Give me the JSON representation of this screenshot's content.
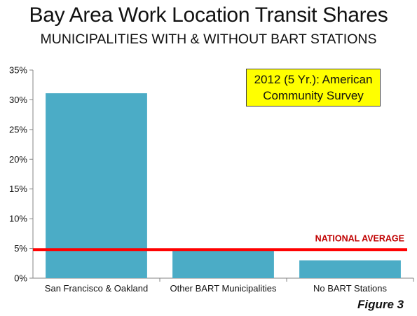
{
  "title": "Bay Area Work Location Transit Shares",
  "subtitle": "MUNICIPALITIES WITH & WITHOUT BART STATIONS",
  "annotation": {
    "line1": "2012 (5 Yr.): American",
    "line2": "Community Survey"
  },
  "figure_label": "Figure 3",
  "colors": {
    "bar": "#4bacc6",
    "national_average_line": "#ff0000",
    "national_average_label": "#c00000",
    "annotation_bg": "#ffff00"
  },
  "chart_data": {
    "type": "bar",
    "title": "Bay Area Work Location Transit Shares",
    "subtitle": "MUNICIPALITIES WITH & WITHOUT BART STATIONS",
    "categories": [
      "San Francisco & Oakland",
      "Other BART Municipalities",
      "No BART Stations"
    ],
    "values": [
      31.1,
      5.0,
      3.0
    ],
    "value_unit": "%",
    "ylim": [
      0,
      35
    ],
    "yticks": [
      0,
      5,
      10,
      15,
      20,
      25,
      30,
      35
    ],
    "ytick_labels": [
      "0%",
      "5%",
      "10%",
      "15%",
      "20%",
      "25%",
      "30%",
      "35%"
    ],
    "grid": false,
    "reference_line": {
      "label": "NATIONAL AVERAGE",
      "value": 4.8
    }
  }
}
